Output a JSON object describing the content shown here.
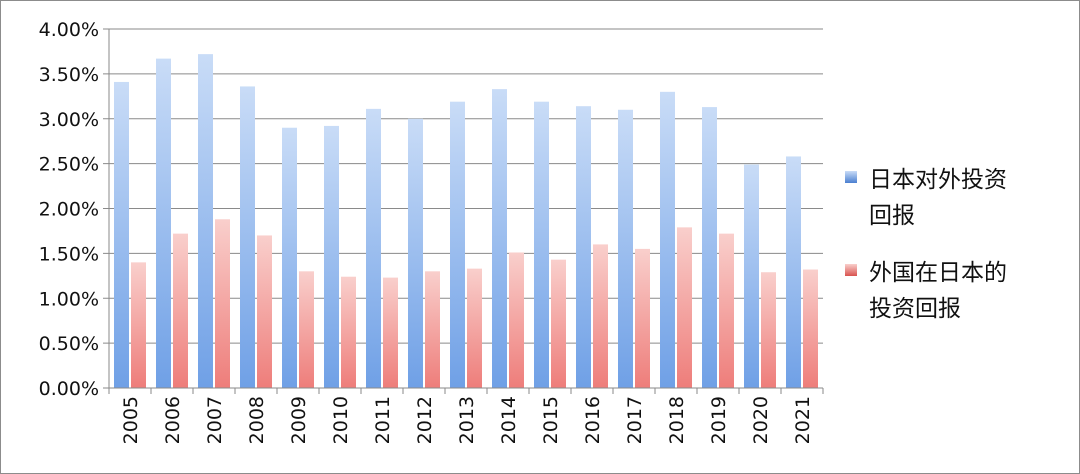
{
  "chart_data": {
    "type": "bar",
    "title": "",
    "xlabel": "",
    "ylabel": "",
    "categories": [
      "2005",
      "2006",
      "2007",
      "2008",
      "2009",
      "2010",
      "2011",
      "2012",
      "2013",
      "2014",
      "2015",
      "2016",
      "2017",
      "2018",
      "2019",
      "2020",
      "2021"
    ],
    "ylim": [
      0,
      4.0
    ],
    "yticks": [
      "0.00%",
      "0.50%",
      "1.00%",
      "1.50%",
      "2.00%",
      "2.50%",
      "3.00%",
      "3.50%",
      "4.00%"
    ],
    "grid": true,
    "legend_position": "right",
    "series": [
      {
        "name_lines": [
          "日本对外投资",
          "回报"
        ],
        "color": "#6fa0e6",
        "color_light": "#c9dcf7",
        "color_dark": "#4a7fd0",
        "values": [
          3.41,
          3.67,
          3.72,
          3.36,
          2.9,
          2.92,
          3.11,
          3.0,
          3.19,
          3.33,
          3.19,
          3.14,
          3.1,
          3.3,
          3.13,
          2.49,
          2.58
        ]
      },
      {
        "name_lines": [
          "外国在日本的",
          "投资回报"
        ],
        "color": "#ee7d7a",
        "color_light": "#f9cfcc",
        "color_dark": "#d9534f",
        "values": [
          1.4,
          1.72,
          1.88,
          1.7,
          1.3,
          1.24,
          1.23,
          1.3,
          1.33,
          1.51,
          1.43,
          1.6,
          1.55,
          1.79,
          1.72,
          1.29,
          1.32
        ]
      }
    ]
  }
}
